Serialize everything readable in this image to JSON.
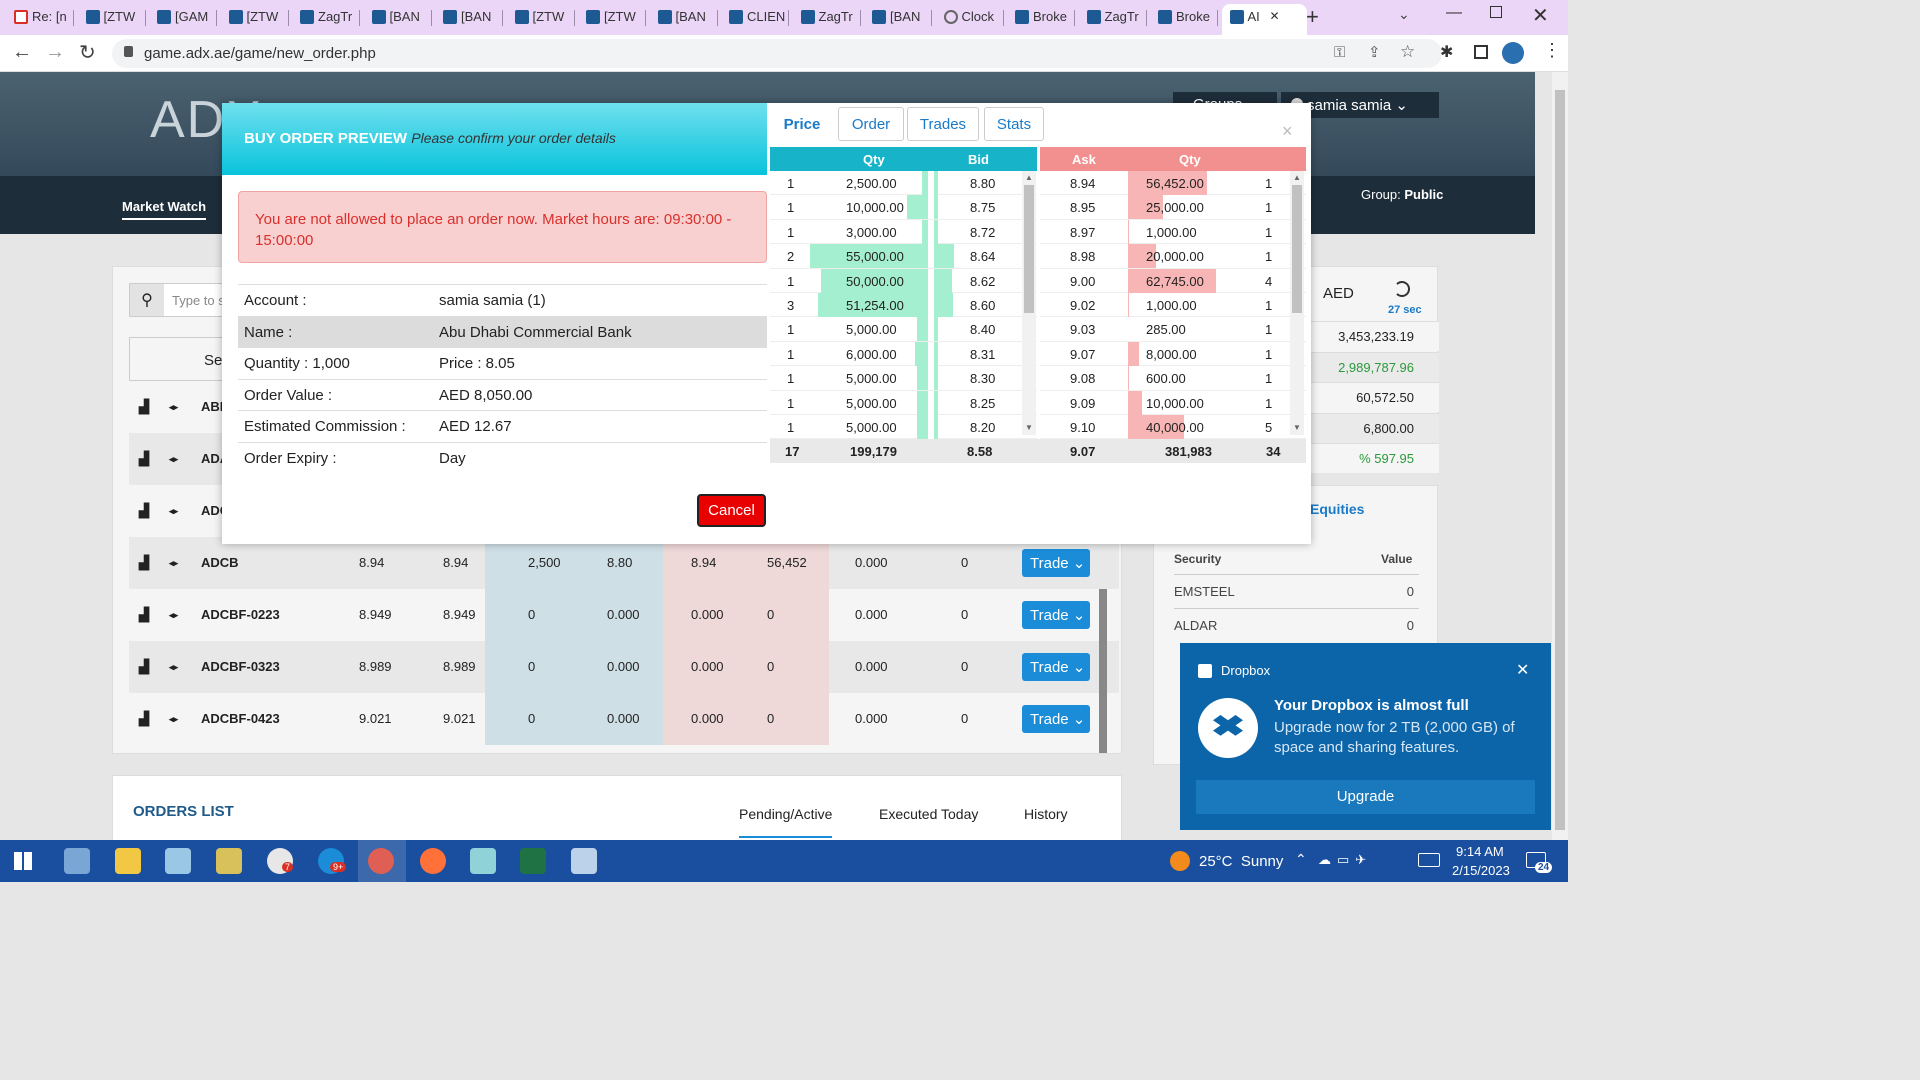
{
  "browser": {
    "tabs": [
      "Re: [n",
      "[ZTW",
      "[GAM",
      "[ZTW",
      "ZagTr",
      "[BAN",
      "[BAN",
      "[ZTW",
      "[ZTW",
      "[BAN",
      "CLIEN",
      "ZagTr",
      "[BAN",
      "Clock",
      "Broke",
      "ZagTr",
      "Broke",
      "AI"
    ],
    "url": "game.adx.ae/game/new_order.php"
  },
  "site": {
    "logo": "ADX",
    "nav_item": "Market Watch",
    "user": "samia samia",
    "groups_label": "Groups",
    "group_label": "Group:",
    "group_value": "Public",
    "search_placeholder": "Type to se",
    "col_sec": "Sec",
    "currency": "AED",
    "timer": "27 sec",
    "summary_values": [
      "3,453,233.19",
      "2,989,787.96",
      "60,572.50",
      "6,800.00",
      "% 597.95"
    ],
    "equities_title": "Equities",
    "holdings_head": {
      "security": "Security",
      "value": "Value"
    },
    "holdings": [
      {
        "security": "EMSTEEL",
        "value": "0"
      },
      {
        "security": "ALDAR",
        "value": "0"
      }
    ],
    "watch_rows": [
      {
        "sym": "ABN"
      },
      {
        "sym": "ADA"
      },
      {
        "sym": "ADC"
      },
      {
        "sym": "ADCB",
        "c1": "8.94",
        "c2": "8.94",
        "c3": "2,500",
        "c4": "8.80",
        "c5": "8.94",
        "c6": "56,452",
        "c7": "0.000",
        "c8": "0"
      },
      {
        "sym": "ADCBF-0223",
        "c1": "8.949",
        "c2": "8.949",
        "c3": "0",
        "c4": "0.000",
        "c5": "0.000",
        "c6": "0",
        "c7": "0.000",
        "c8": "0"
      },
      {
        "sym": "ADCBF-0323",
        "c1": "8.989",
        "c2": "8.989",
        "c3": "0",
        "c4": "0.000",
        "c5": "0.000",
        "c6": "0",
        "c7": "0.000",
        "c8": "0"
      },
      {
        "sym": "ADCBF-0423",
        "c1": "9.021",
        "c2": "9.021",
        "c3": "0",
        "c4": "0.000",
        "c5": "0.000",
        "c6": "0",
        "c7": "0.000",
        "c8": "0"
      }
    ],
    "trade_label": "Trade",
    "orders_title": "ORDERS LIST",
    "orders_tabs": [
      "Pending/Active",
      "Executed Today",
      "History"
    ]
  },
  "modal": {
    "title": "BUY ORDER PREVIEW",
    "subtitle": "Please confirm your order details",
    "alert": "You are not allowed to place an order now. Market hours are: 09:30:00 - 15:00:00",
    "fields": [
      {
        "label": "Account :",
        "value": "samia samia (1)"
      },
      {
        "label": "Name :",
        "value": "Abu Dhabi Commercial Bank"
      },
      {
        "label": "Quantity : 1,000",
        "value": "Price : 8.05"
      },
      {
        "label": "Order Value :",
        "value": "AED 8,050.00"
      },
      {
        "label": "Estimated Commission :",
        "value": "AED 12.67"
      },
      {
        "label": "Order Expiry :",
        "value": "Day"
      }
    ],
    "cancel_label": "Cancel",
    "close_glyph": "×",
    "tabs": [
      "Price",
      "Order",
      "Trades",
      "Stats"
    ],
    "book_head": {
      "qty": "Qty",
      "bid": "Bid",
      "ask": "Ask",
      "qty2": "Qty"
    },
    "bids": [
      {
        "n": "1",
        "qty": "2,500.00",
        "price": "8.80"
      },
      {
        "n": "1",
        "qty": "10,000.00",
        "price": "8.75"
      },
      {
        "n": "1",
        "qty": "3,000.00",
        "price": "8.72"
      },
      {
        "n": "2",
        "qty": "55,000.00",
        "price": "8.64"
      },
      {
        "n": "1",
        "qty": "50,000.00",
        "price": "8.62"
      },
      {
        "n": "3",
        "qty": "51,254.00",
        "price": "8.60"
      },
      {
        "n": "1",
        "qty": "5,000.00",
        "price": "8.40"
      },
      {
        "n": "1",
        "qty": "6,000.00",
        "price": "8.31"
      },
      {
        "n": "1",
        "qty": "5,000.00",
        "price": "8.30"
      },
      {
        "n": "1",
        "qty": "5,000.00",
        "price": "8.25"
      },
      {
        "n": "1",
        "qty": "5,000.00",
        "price": "8.20"
      }
    ],
    "asks": [
      {
        "price": "8.94",
        "qty": "56,452.00",
        "n": "1"
      },
      {
        "price": "8.95",
        "qty": "25,000.00",
        "n": "1"
      },
      {
        "price": "8.97",
        "qty": "1,000.00",
        "n": "1"
      },
      {
        "price": "8.98",
        "qty": "20,000.00",
        "n": "1"
      },
      {
        "price": "9.00",
        "qty": "62,745.00",
        "n": "4"
      },
      {
        "price": "9.02",
        "qty": "1,000.00",
        "n": "1"
      },
      {
        "price": "9.03",
        "qty": "285.00",
        "n": "1"
      },
      {
        "price": "9.07",
        "qty": "8,000.00",
        "n": "1"
      },
      {
        "price": "9.08",
        "qty": "600.00",
        "n": "1"
      },
      {
        "price": "9.09",
        "qty": "10,000.00",
        "n": "1"
      },
      {
        "price": "9.10",
        "qty": "40,000.00",
        "n": "5"
      }
    ],
    "totals": {
      "bid_n": "17",
      "bid_qty": "199,179",
      "bid_avg": "8.58",
      "ask_avg": "9.07",
      "ask_qty": "381,983",
      "ask_n": "34"
    }
  },
  "dropbox": {
    "app": "Dropbox",
    "title": "Your Dropbox is almost full",
    "body": "Upgrade now for 2 TB (2,000 GB) of space and sharing features.",
    "button": "Upgrade"
  },
  "taskbar": {
    "weather": "25°C  Sunny",
    "time": "9:14 AM",
    "date": "2/15/2023",
    "notif_count": "24",
    "badge_7": "7",
    "badge_9": "9+"
  }
}
